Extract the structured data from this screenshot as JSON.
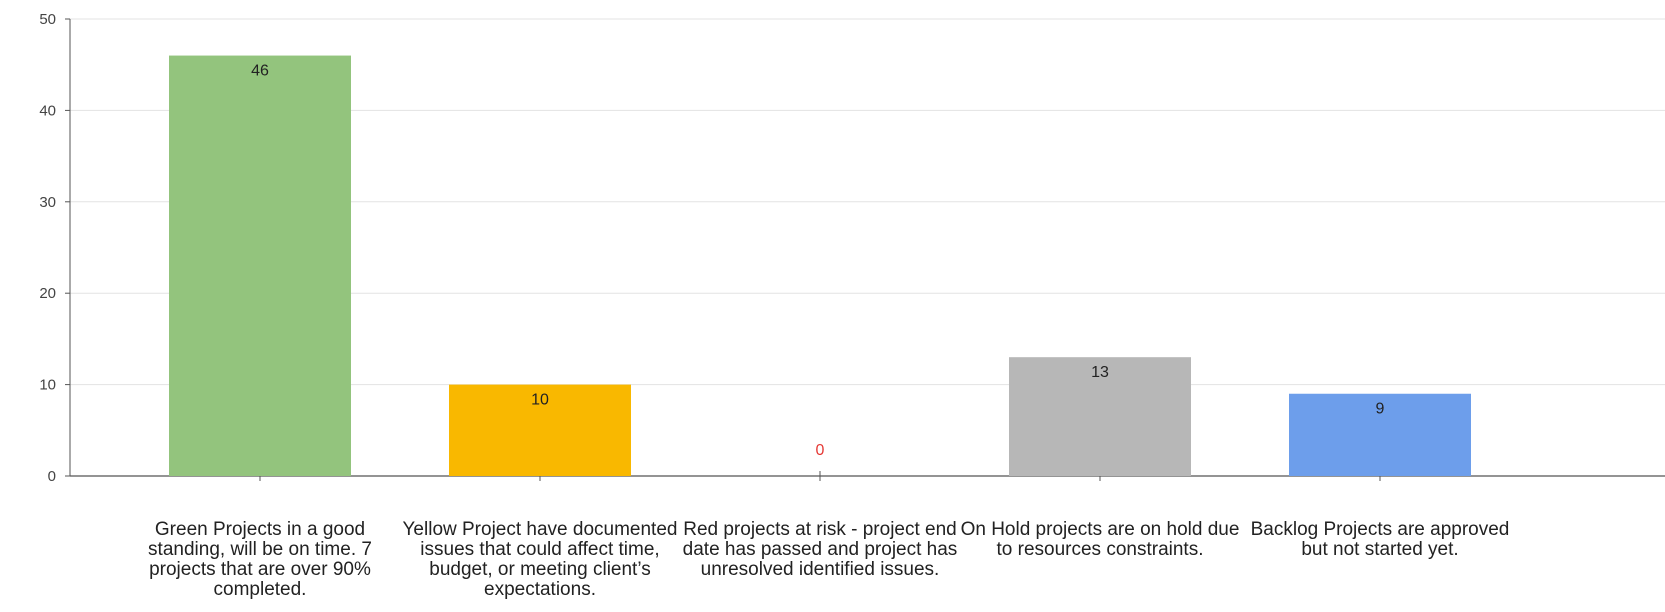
{
  "chart_data": {
    "type": "bar",
    "title": "",
    "xlabel": "",
    "ylabel": "",
    "ylim": [
      0,
      50
    ],
    "yticks": [
      0,
      10,
      20,
      30,
      40,
      50
    ],
    "grid": true,
    "legend": "none",
    "categories": [
      "Green Projects in a good standing, will be on time. 7 projects that are over 90% completed.",
      "Yellow Project have documented issues that could affect time, budget, or meeting client’s expectations.",
      "Red projects at risk - project end date has passed and project has unresolved identified issues.",
      "On Hold projects are on hold due to resources constraints.",
      "Backlog Projects are approved but not started yet."
    ],
    "values": [
      46,
      10,
      0,
      13,
      9
    ],
    "bar_colors": [
      "#93c47d",
      "#f9b800",
      "#e53935",
      "#b7b7b7",
      "#6d9eeb"
    ],
    "value_label_colors": [
      "#222222",
      "#222222",
      "#e53935",
      "#222222",
      "#222222"
    ]
  }
}
